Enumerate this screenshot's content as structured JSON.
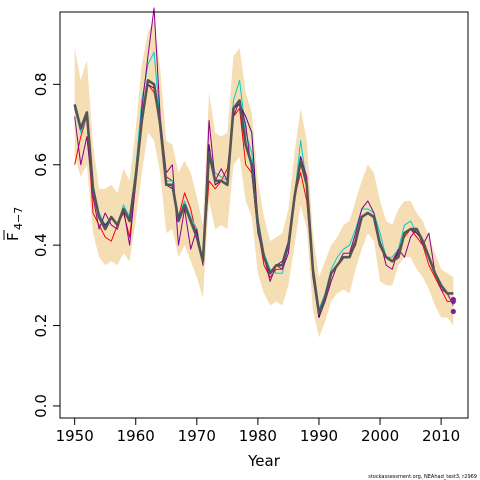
{
  "chart_data": {
    "type": "line",
    "xlabel": "Year",
    "ylabel_main": "F",
    "ylabel_sub": "4−7",
    "xlim": [
      1947.6,
      2014.4
    ],
    "ylim": [
      -0.03,
      0.98
    ],
    "x_ticks": [
      1950,
      1960,
      1970,
      1980,
      1990,
      2000,
      2010
    ],
    "y_ticks": [
      0.0,
      0.2,
      0.4,
      0.6,
      0.8
    ],
    "y_tick_labels": [
      "0.0",
      "0.2",
      "0.4",
      "0.6",
      "0.8"
    ],
    "credit": "stockassessment.org, NEAhad_test3, r2969",
    "colors": {
      "band": "#f5deb3",
      "estimate": "#555555",
      "retro1": "#ff0000",
      "retro2": "#00cdcd",
      "retro3": "#8b008b",
      "retro4": "#4b0082",
      "endpoint": "#7b1fa2"
    },
    "years": [
      1950,
      1951,
      1952,
      1953,
      1954,
      1955,
      1956,
      1957,
      1958,
      1959,
      1960,
      1961,
      1962,
      1963,
      1964,
      1965,
      1966,
      1967,
      1968,
      1969,
      1970,
      1971,
      1972,
      1973,
      1974,
      1975,
      1976,
      1977,
      1978,
      1979,
      1980,
      1981,
      1982,
      1983,
      1984,
      1985,
      1986,
      1987,
      1988,
      1989,
      1990,
      1991,
      1992,
      1993,
      1994,
      1995,
      1996,
      1997,
      1998,
      1999,
      2000,
      2001,
      2002,
      2003,
      2004,
      2005,
      2006,
      2007,
      2008,
      2009,
      2010,
      2011,
      2012
    ],
    "band_upper": [
      0.89,
      0.81,
      0.86,
      0.65,
      0.54,
      0.54,
      0.55,
      0.53,
      0.59,
      0.56,
      0.69,
      0.85,
      0.93,
      0.96,
      0.84,
      0.66,
      0.65,
      0.58,
      0.61,
      0.58,
      0.52,
      0.45,
      0.78,
      0.68,
      0.67,
      0.68,
      0.87,
      0.89,
      0.78,
      0.73,
      0.56,
      0.47,
      0.41,
      0.42,
      0.43,
      0.49,
      0.63,
      0.74,
      0.66,
      0.43,
      0.32,
      0.36,
      0.4,
      0.42,
      0.45,
      0.46,
      0.51,
      0.56,
      0.6,
      0.58,
      0.51,
      0.46,
      0.45,
      0.49,
      0.51,
      0.51,
      0.48,
      0.46,
      0.42,
      0.38,
      0.34,
      0.33,
      0.32
    ],
    "band_lower": [
      0.62,
      0.57,
      0.6,
      0.43,
      0.37,
      0.35,
      0.36,
      0.35,
      0.38,
      0.36,
      0.46,
      0.58,
      0.68,
      0.66,
      0.58,
      0.43,
      0.44,
      0.37,
      0.4,
      0.36,
      0.32,
      0.27,
      0.51,
      0.44,
      0.45,
      0.44,
      0.6,
      0.62,
      0.51,
      0.47,
      0.33,
      0.28,
      0.25,
      0.26,
      0.25,
      0.3,
      0.4,
      0.5,
      0.44,
      0.24,
      0.17,
      0.21,
      0.26,
      0.28,
      0.29,
      0.28,
      0.34,
      0.39,
      0.43,
      0.41,
      0.31,
      0.3,
      0.3,
      0.35,
      0.37,
      0.37,
      0.34,
      0.32,
      0.29,
      0.25,
      0.22,
      0.22,
      0.2
    ],
    "series": [
      {
        "values": [
          0.75,
          0.69,
          0.73,
          0.54,
          0.47,
          0.44,
          0.47,
          0.45,
          0.49,
          0.46,
          0.57,
          0.71,
          0.81,
          0.8,
          0.7,
          0.55,
          0.55,
          0.46,
          0.5,
          0.46,
          0.42,
          0.36,
          0.63,
          0.56,
          0.56,
          0.55,
          0.74,
          0.76,
          0.65,
          0.6,
          0.45,
          0.37,
          0.33,
          0.35,
          0.35,
          0.4,
          0.52,
          0.61,
          0.55,
          0.34,
          0.23,
          0.27,
          0.33,
          0.35,
          0.37,
          0.37,
          0.41,
          0.47,
          0.48,
          0.47,
          0.4,
          0.37,
          0.36,
          0.37,
          0.43,
          0.44,
          0.44,
          0.41,
          0.37,
          0.33,
          0.3,
          0.28,
          0.28
        ]
      },
      {
        "values": [
          0.6,
          0.67,
          0.72,
          0.48,
          0.45,
          0.42,
          0.41,
          0.45,
          0.48,
          0.42,
          0.55,
          0.7,
          0.8,
          0.78,
          0.7,
          0.57,
          0.56,
          0.47,
          0.53,
          0.49,
          0.42,
          0.36,
          0.56,
          0.54,
          0.56,
          0.59,
          0.72,
          0.74,
          0.6,
          0.58,
          0.44,
          0.35,
          0.32,
          0.34,
          0.34,
          0.4,
          0.52,
          0.58,
          0.51,
          0.33,
          0.22,
          0.27,
          0.33,
          0.35,
          0.37,
          0.37,
          0.4,
          0.47,
          0.48,
          0.47,
          0.41,
          0.37,
          0.36,
          0.39,
          0.42,
          0.44,
          0.42,
          0.4,
          0.35,
          0.32,
          0.29,
          0.26,
          0.26
        ]
      },
      {
        "values": [
          0.74,
          0.68,
          0.72,
          0.55,
          0.48,
          0.45,
          0.47,
          0.45,
          0.5,
          0.47,
          0.59,
          0.76,
          0.85,
          0.88,
          0.71,
          0.56,
          0.56,
          0.47,
          0.51,
          0.47,
          0.44,
          0.36,
          0.64,
          0.58,
          0.57,
          0.56,
          0.76,
          0.81,
          0.68,
          0.63,
          0.47,
          0.38,
          0.34,
          0.33,
          0.33,
          0.4,
          0.52,
          0.66,
          0.55,
          0.34,
          0.24,
          0.28,
          0.34,
          0.37,
          0.39,
          0.4,
          0.44,
          0.49,
          0.49,
          0.48,
          0.43,
          0.37,
          0.37,
          0.39,
          0.45,
          0.46,
          0.43,
          0.41,
          0.37,
          0.33,
          0.3,
          0.28,
          0.28
        ]
      },
      {
        "values": [
          0.72,
          0.6,
          0.67,
          0.52,
          0.44,
          0.48,
          0.45,
          0.44,
          0.49,
          0.4,
          0.56,
          0.74,
          0.87,
          0.99,
          0.72,
          0.58,
          0.6,
          0.4,
          0.49,
          0.39,
          0.44,
          0.35,
          0.71,
          0.56,
          0.59,
          0.56,
          0.72,
          0.76,
          0.7,
          0.58,
          0.43,
          0.37,
          0.31,
          0.35,
          0.34,
          0.38,
          0.51,
          0.62,
          0.57,
          0.32,
          0.22,
          0.26,
          0.31,
          0.35,
          0.38,
          0.38,
          0.43,
          0.49,
          0.51,
          0.48,
          0.41,
          0.35,
          0.34,
          0.39,
          0.37,
          0.42,
          0.44,
          0.4,
          0.43,
          0.33,
          0.29,
          0.28,
          0.25
        ]
      },
      {
        "values": [
          0.74,
          0.69,
          0.72,
          0.55,
          0.47,
          0.45,
          0.47,
          0.45,
          0.49,
          0.46,
          0.58,
          0.71,
          0.8,
          0.79,
          0.71,
          0.55,
          0.54,
          0.47,
          0.5,
          0.46,
          0.43,
          0.36,
          0.65,
          0.55,
          0.56,
          0.55,
          0.74,
          0.75,
          0.72,
          0.68,
          0.46,
          0.37,
          0.33,
          0.35,
          0.36,
          0.41,
          0.53,
          0.62,
          0.55,
          0.33,
          0.22,
          0.27,
          0.33,
          0.35,
          0.37,
          0.37,
          0.41,
          0.47,
          0.48,
          0.47,
          0.4,
          0.37,
          0.36,
          0.38,
          0.43,
          0.44,
          0.43,
          0.41,
          0.37,
          0.33,
          0.3,
          0.28,
          0.28
        ]
      }
    ],
    "endpoints": [
      {
        "x": 2012,
        "y": 0.26
      },
      {
        "x": 2012,
        "y": 0.265
      },
      {
        "x": 2012,
        "y": 0.235
      }
    ]
  }
}
